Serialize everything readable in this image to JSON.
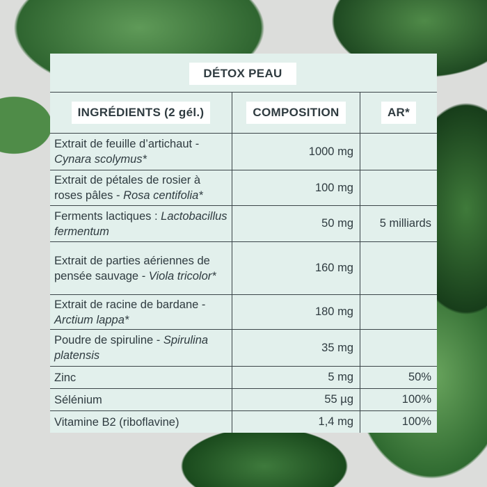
{
  "title": "DÉTOX PEAU",
  "headers": {
    "ingredients": "INGRÉDIENTS (2 gél.)",
    "composition": "COMPOSITION",
    "ar": "AR*"
  },
  "rows": [
    {
      "name": "Extrait de feuille d’artichaut",
      "sep": " - ",
      "latin": "Cynara scolymus*",
      "composition": "1000 mg",
      "ar": ""
    },
    {
      "name": "Extrait de pétales de rosier à roses pâles",
      "sep": " - ",
      "latin": "Rosa centifolia*",
      "composition": "100 mg",
      "ar": ""
    },
    {
      "name": "Ferments lactiques :",
      "sep": " ",
      "latin": "Lactobacillus fermentum",
      "composition": "50 mg",
      "ar": "5 milliards"
    },
    {
      "name": "Extrait de parties aériennes de pensée sauvage",
      "sep": " - ",
      "latin": "Viola tricolor*",
      "composition": "160 mg",
      "ar": ""
    },
    {
      "name": "Extrait de racine de bardane",
      "sep": " - ",
      "latin": "Arctium lappa*",
      "composition": "180 mg",
      "ar": ""
    },
    {
      "name": "Poudre de spiruline -",
      "sep": " ",
      "latin": "Spirulina platensis",
      "composition": "35 mg",
      "ar": ""
    },
    {
      "name": "Zinc",
      "sep": "",
      "latin": "",
      "composition": "5 mg",
      "ar": "50%"
    },
    {
      "name": "Sélénium",
      "sep": "",
      "latin": "",
      "composition": "55 µg",
      "ar": "100%"
    },
    {
      "name": "Vitamine B2 (riboflavine)",
      "sep": "",
      "latin": "",
      "composition": "1,4 mg",
      "ar": "100%"
    }
  ],
  "colors": {
    "table_bg": "#e2f0ec",
    "text": "#2f3b40",
    "border": "#3a4448"
  }
}
